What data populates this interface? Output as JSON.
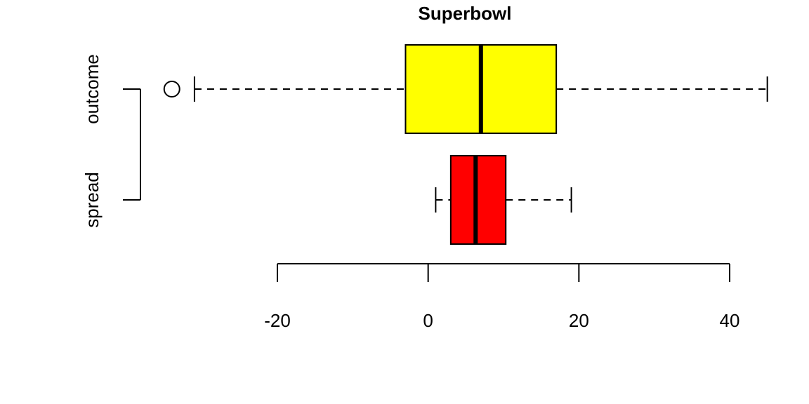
{
  "chart_data": {
    "type": "boxplot",
    "orientation": "horizontal",
    "title": "Superbowl",
    "xlabel": "",
    "ylabel": "",
    "xlim": [
      -20,
      45
    ],
    "xticks": [
      -20,
      0,
      20,
      40
    ],
    "grid": false,
    "series": [
      {
        "name": "outcome",
        "color": "#ffff00",
        "whisker_low": -31,
        "q1": -3,
        "median": 7,
        "q3": 17,
        "whisker_high": 45,
        "outliers": [
          -34
        ]
      },
      {
        "name": "spread",
        "color": "#ff0000",
        "whisker_low": 1,
        "q1": 3,
        "median": 6.3,
        "q3": 10.3,
        "whisker_high": 19,
        "outliers": []
      }
    ]
  }
}
